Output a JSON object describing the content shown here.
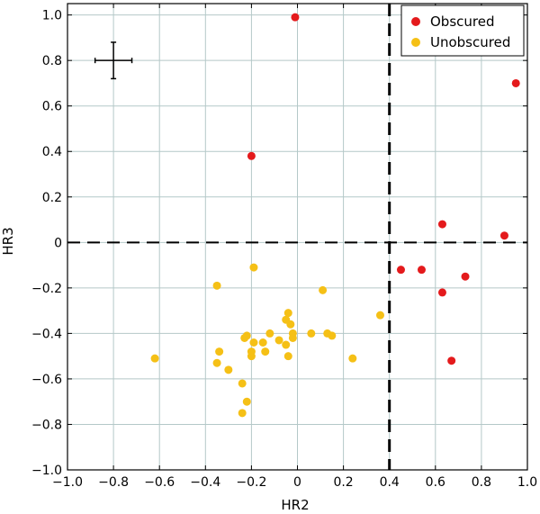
{
  "chart_data": {
    "type": "scatter",
    "title": "",
    "xlabel": "HR2",
    "ylabel": "HR3",
    "xlim": [
      -1.0,
      1.0
    ],
    "ylim": [
      -1.0,
      1.05
    ],
    "xticks": [
      -1.0,
      -0.8,
      -0.6,
      -0.4,
      -0.2,
      0,
      0.2,
      0.4,
      0.6,
      0.8,
      1.0
    ],
    "xtick_labels": [
      "−1.0",
      "−0.8",
      "−0.6",
      "−0.4",
      "−0.2",
      "0",
      "0.2",
      "0.4",
      "0.6",
      "0.8",
      "1.0"
    ],
    "yticks": [
      -1.0,
      -0.8,
      -0.6,
      -0.4,
      -0.2,
      0,
      0.2,
      0.4,
      0.6,
      0.8,
      1.0
    ],
    "ytick_labels": [
      "−1.0",
      "−0.8",
      "−0.6",
      "−0.4",
      "−0.2",
      "0",
      "0.2",
      "0.4",
      "0.6",
      "0.8",
      "1.0"
    ],
    "grid": true,
    "legend_position": "top-right",
    "reference_lines": {
      "vertical_x": 0.4,
      "horizontal_y": 0
    },
    "error_bar": {
      "x": -0.8,
      "y": 0.8,
      "xerr": 0.08,
      "yerr": 0.08
    },
    "series": [
      {
        "name": "Obscured",
        "color": "#e41a1c",
        "points": [
          [
            -0.01,
            0.99
          ],
          [
            -0.2,
            0.38
          ],
          [
            0.95,
            0.7
          ],
          [
            0.63,
            0.08
          ],
          [
            0.9,
            0.03
          ],
          [
            0.45,
            -0.12
          ],
          [
            0.54,
            -0.12
          ],
          [
            0.73,
            -0.15
          ],
          [
            0.63,
            -0.22
          ],
          [
            0.67,
            -0.52
          ]
        ]
      },
      {
        "name": "Unobscured",
        "color": "#f5c016",
        "points": [
          [
            -0.19,
            -0.11
          ],
          [
            -0.35,
            -0.19
          ],
          [
            0.11,
            -0.21
          ],
          [
            0.36,
            -0.32
          ],
          [
            -0.04,
            -0.31
          ],
          [
            -0.05,
            -0.34
          ],
          [
            -0.03,
            -0.36
          ],
          [
            -0.02,
            -0.4
          ],
          [
            -0.02,
            -0.42
          ],
          [
            0.06,
            -0.4
          ],
          [
            0.13,
            -0.4
          ],
          [
            0.15,
            -0.41
          ],
          [
            -0.08,
            -0.43
          ],
          [
            -0.05,
            -0.45
          ],
          [
            -0.12,
            -0.4
          ],
          [
            -0.15,
            -0.44
          ],
          [
            -0.23,
            -0.42
          ],
          [
            -0.22,
            -0.41
          ],
          [
            -0.19,
            -0.44
          ],
          [
            -0.2,
            -0.48
          ],
          [
            -0.2,
            -0.5
          ],
          [
            -0.14,
            -0.48
          ],
          [
            -0.04,
            -0.5
          ],
          [
            -0.34,
            -0.48
          ],
          [
            -0.35,
            -0.53
          ],
          [
            -0.3,
            -0.56
          ],
          [
            0.24,
            -0.51
          ],
          [
            -0.62,
            -0.51
          ],
          [
            -0.24,
            -0.62
          ],
          [
            -0.22,
            -0.7
          ],
          [
            -0.24,
            -0.75
          ]
        ]
      }
    ]
  }
}
